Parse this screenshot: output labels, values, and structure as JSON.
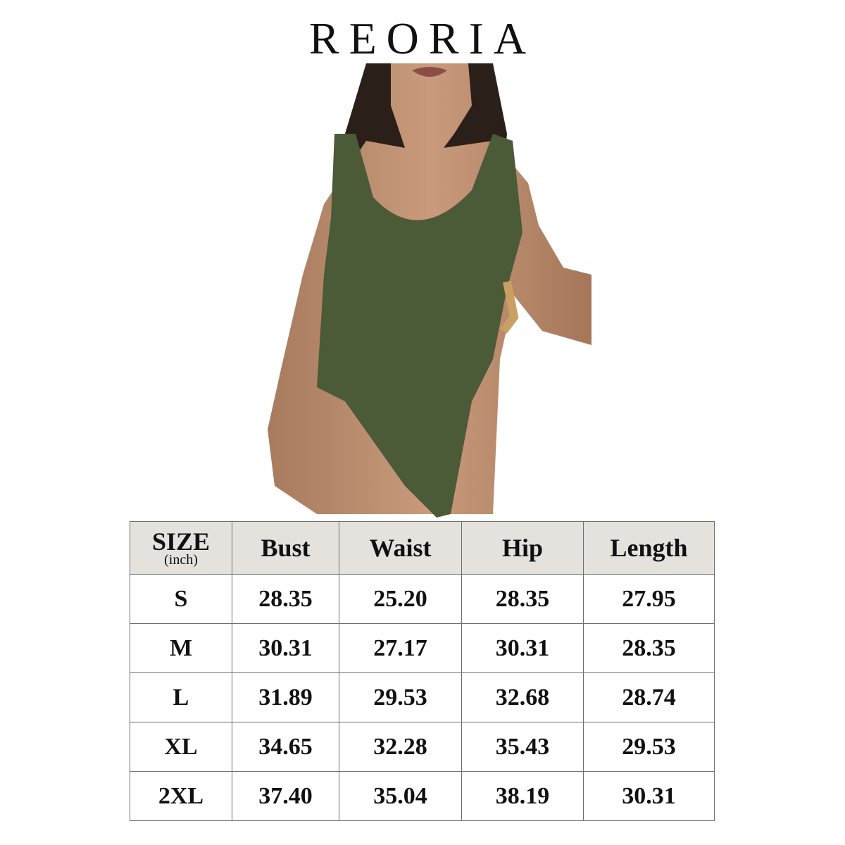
{
  "brand": "REORIA",
  "colors": {
    "garment": "#4b5a37",
    "header_bg": "#e5e2de",
    "border": "#6e6e6e"
  },
  "size_chart": {
    "header": {
      "size": "SIZE",
      "unit": "(inch)",
      "columns": [
        "Bust",
        "Waist",
        "Hip",
        "Length"
      ]
    },
    "rows": [
      {
        "size": "S",
        "values": [
          "28.35",
          "25.20",
          "28.35",
          "27.95"
        ]
      },
      {
        "size": "M",
        "values": [
          "30.31",
          "27.17",
          "30.31",
          "28.35"
        ]
      },
      {
        "size": "L",
        "values": [
          "31.89",
          "29.53",
          "32.68",
          "28.74"
        ]
      },
      {
        "size": "XL",
        "values": [
          "34.65",
          "32.28",
          "35.43",
          "29.53"
        ]
      },
      {
        "size": "2XL",
        "values": [
          "37.40",
          "35.04",
          "38.19",
          "30.31"
        ]
      }
    ]
  }
}
